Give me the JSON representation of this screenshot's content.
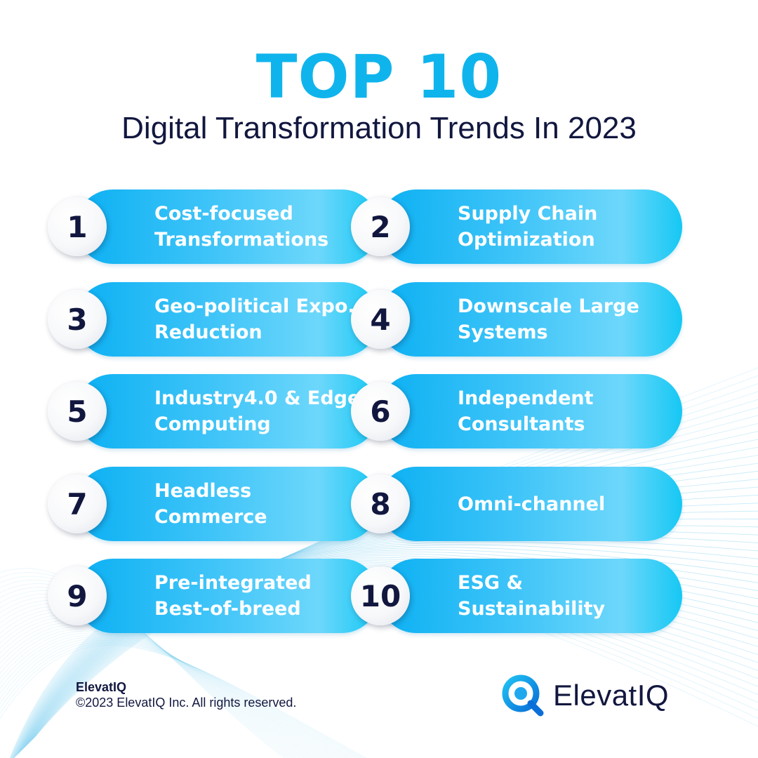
{
  "header": {
    "title": "TOP 10",
    "subtitle": "Digital Transformation Trends In 2023"
  },
  "trends": [
    {
      "number": "1",
      "label": "Cost-focused\nTransformations"
    },
    {
      "number": "2",
      "label": "Supply Chain\nOptimization"
    },
    {
      "number": "3",
      "label": "Geo-political Expo.\nReduction"
    },
    {
      "number": "4",
      "label": "Downscale Large\nSystems"
    },
    {
      "number": "5",
      "label": "Industry4.0 & Edge\nComputing"
    },
    {
      "number": "6",
      "label": "Independent\nConsultants"
    },
    {
      "number": "7",
      "label": "Headless\nCommerce"
    },
    {
      "number": "8",
      "label": "Omni-channel"
    },
    {
      "number": "9",
      "label": "Pre-integrated\nBest-of-breed"
    },
    {
      "number": "10",
      "label": "ESG &\nSustainability"
    }
  ],
  "footer": {
    "brand": "ElevatIQ",
    "copyright": "©2023 ElevatIQ Inc. All rights reserved.",
    "logo_text": "ElevatIQ",
    "logo_icon": "magnifier-q-icon"
  },
  "colors": {
    "accent": "#10b4ec",
    "navy": "#12173f",
    "pill_start": "#0bb0f3",
    "pill_end": "#6dd7fb"
  }
}
